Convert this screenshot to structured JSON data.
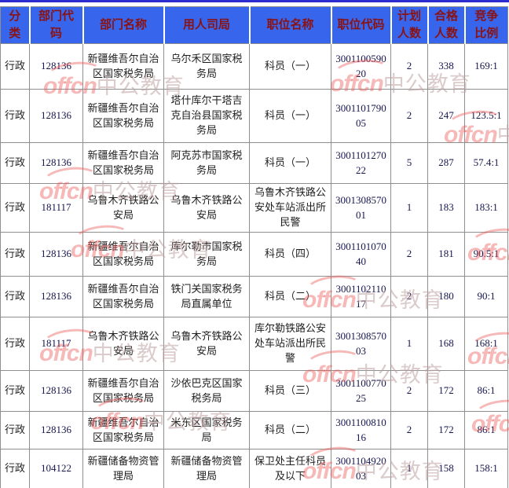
{
  "colors": {
    "header_bg": "#3766ec",
    "header_text": "#8b1212",
    "top_line": "#2b2bd0",
    "grid": "#8f8f8f",
    "text": "#1e1e1e",
    "code_text": "#16164f"
  },
  "watermark": {
    "brand": "offcn",
    "cn": "中公教育"
  },
  "table": {
    "columns": [
      {
        "key": "category",
        "label": "分类",
        "numeric": false
      },
      {
        "key": "dept_code",
        "label": "部门代码",
        "numeric": true
      },
      {
        "key": "dept_name",
        "label": "部门名称",
        "numeric": false
      },
      {
        "key": "bureau",
        "label": "用人司局",
        "numeric": false
      },
      {
        "key": "job_title",
        "label": "职位名称",
        "numeric": false
      },
      {
        "key": "job_code",
        "label": "职位代码",
        "numeric": true
      },
      {
        "key": "plan_count",
        "label": "计划人数",
        "numeric": true
      },
      {
        "key": "pass_count",
        "label": "合格人数",
        "numeric": true
      },
      {
        "key": "ratio",
        "label": "竞争比例",
        "numeric": true
      }
    ],
    "rows": [
      {
        "category": "行政",
        "dept_code": "128136",
        "dept_name": "新疆维吾尔自治区国家税务局",
        "bureau": "乌尔禾区国家税务局",
        "job_title": "科员（一）",
        "job_code": "300110059020",
        "plan_count": "2",
        "pass_count": "338",
        "ratio": "169:1"
      },
      {
        "category": "行政",
        "dept_code": "128136",
        "dept_name": "新疆维吾尔自治区国家税务局",
        "bureau": "塔什库尔干塔吉克自治县国家税务局",
        "job_title": "科员（一）",
        "job_code": "300110179005",
        "plan_count": "2",
        "pass_count": "247",
        "ratio": "123.5:1"
      },
      {
        "category": "行政",
        "dept_code": "128136",
        "dept_name": "新疆维吾尔自治区国家税务局",
        "bureau": "阿克苏市国家税务局",
        "job_title": "科员（一）",
        "job_code": "300110127022",
        "plan_count": "5",
        "pass_count": "287",
        "ratio": "57.4:1"
      },
      {
        "category": "行政",
        "dept_code": "181117",
        "dept_name": "乌鲁木齐铁路公安局",
        "bureau": "乌鲁木齐铁路公安局",
        "job_title": "乌鲁木齐铁路公安处车站派出所民警",
        "job_code": "300130857001",
        "plan_count": "1",
        "pass_count": "183",
        "ratio": "183:1"
      },
      {
        "category": "行政",
        "dept_code": "128136",
        "dept_name": "新疆维吾尔自治区国家税务局",
        "bureau": "库尔勒市国家税务局",
        "job_title": "科员（四）",
        "job_code": "300110107040",
        "plan_count": "2",
        "pass_count": "181",
        "ratio": "90.5:1"
      },
      {
        "category": "行政",
        "dept_code": "128136",
        "dept_name": "新疆维吾尔自治区国家税务局",
        "bureau": "铁门关国家税务局直属单位",
        "job_title": "科员（二）",
        "job_code": "300110211017",
        "plan_count": "2",
        "pass_count": "180",
        "ratio": "90:1"
      },
      {
        "category": "行政",
        "dept_code": "181117",
        "dept_name": "乌鲁木齐铁路公安局",
        "bureau": "乌鲁木齐铁路公安局",
        "job_title": "库尔勒铁路公安处车站派出所民警",
        "job_code": "300130857003",
        "plan_count": "1",
        "pass_count": "168",
        "ratio": "168:1"
      },
      {
        "category": "行政",
        "dept_code": "128136",
        "dept_name": "新疆维吾尔自治区国家税务局",
        "bureau": "沙依巴克区国家税务局",
        "job_title": "科员（三）",
        "job_code": "300110077025",
        "plan_count": "2",
        "pass_count": "172",
        "ratio": "86:1"
      },
      {
        "category": "行政",
        "dept_code": "128136",
        "dept_name": "新疆维吾尔自治区国家税务局",
        "bureau": "米东区国家税务局",
        "job_title": "科员（二）",
        "job_code": "300110081016",
        "plan_count": "2",
        "pass_count": "172",
        "ratio": "86:1"
      },
      {
        "category": "行政",
        "dept_code": "104122",
        "dept_name": "新疆储备物资管理局",
        "bureau": "新疆储备物资管理局",
        "job_title": "保卫处主任科员及以下",
        "job_code": "300110492003",
        "plan_count": "1",
        "pass_count": "158",
        "ratio": "158:1"
      }
    ]
  }
}
